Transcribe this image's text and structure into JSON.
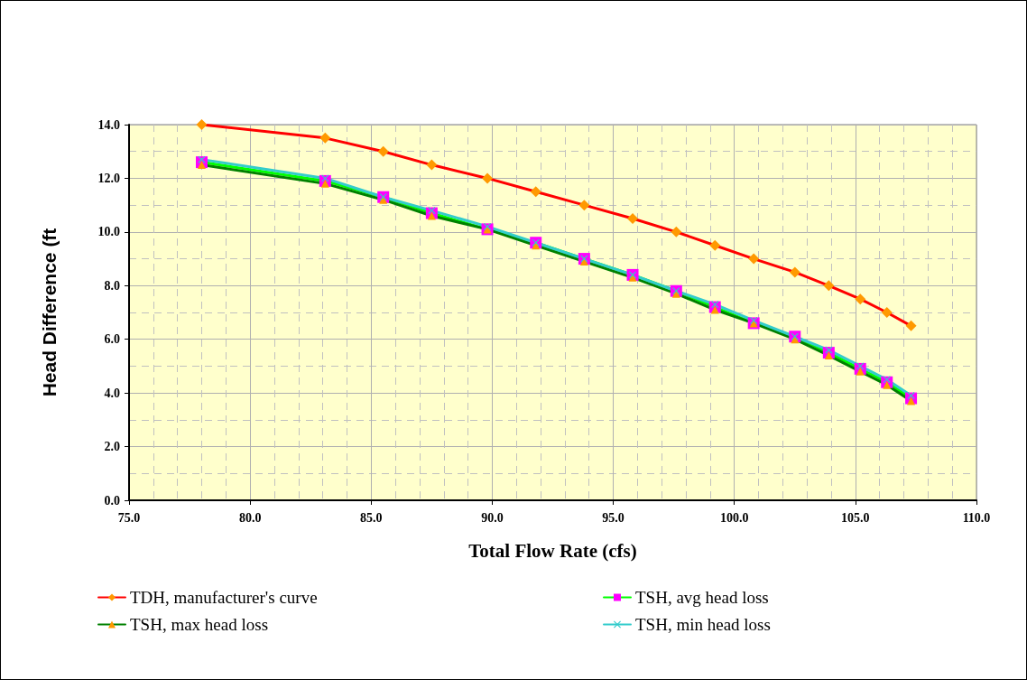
{
  "chart_data": {
    "type": "line",
    "xlabel": "Total Flow Rate (cfs)",
    "ylabel": "Head Difference (ft",
    "x": [
      78.0,
      83.1,
      85.5,
      87.5,
      89.8,
      91.8,
      93.8,
      95.8,
      97.6,
      99.2,
      100.8,
      102.5,
      103.9,
      105.2,
      106.3,
      107.3
    ],
    "xlim": [
      75,
      110
    ],
    "xticks": [
      {
        "value": 75,
        "label": "75.0"
      },
      {
        "value": 80,
        "label": "80.0"
      },
      {
        "value": 85,
        "label": "85.0"
      },
      {
        "value": 90,
        "label": "90.0"
      },
      {
        "value": 95,
        "label": "95.0"
      },
      {
        "value": 100,
        "label": "100.0"
      },
      {
        "value": 105,
        "label": "105.0"
      },
      {
        "value": 110,
        "label": "110.0"
      }
    ],
    "ylim": [
      0,
      14
    ],
    "yticks": [
      {
        "value": 0,
        "label": "0.0"
      },
      {
        "value": 2,
        "label": "2.0"
      },
      {
        "value": 4,
        "label": "4.0"
      },
      {
        "value": 6,
        "label": "6.0"
      },
      {
        "value": 8,
        "label": "8.0"
      },
      {
        "value": 10,
        "label": "10.0"
      },
      {
        "value": 12,
        "label": "12.0"
      },
      {
        "value": 14,
        "label": "14.0"
      }
    ],
    "grid": true,
    "legend": "bottom",
    "line_style": "solid",
    "series": [
      {
        "name": "TDH, manufacturer's curve",
        "color": "#ff0000",
        "marker": "diamond",
        "colors": [
          "#ff9900",
          "#ff9900",
          "#ff9900",
          "#ff9900",
          "#ff9900",
          "#ff9900",
          "#ff9900",
          "#ff9900",
          "#ff9900",
          "#ff9900",
          "#ff9900",
          "#ff9900",
          "#ff9900",
          "#ff9900",
          "#ff9900",
          "#ff9900"
        ],
        "values": [
          14.0,
          13.5,
          13.0,
          12.5,
          12.0,
          11.5,
          11.0,
          10.5,
          10.0,
          9.5,
          9.0,
          8.5,
          8.0,
          7.5,
          7.0,
          6.5
        ]
      },
      {
        "name": "TSH, avg head loss",
        "color": "#00ff00",
        "marker": "square",
        "colors": [
          "#ff00ff",
          "#ff00ff",
          "#ff00ff",
          "#ff00ff",
          "#ff00ff",
          "#ff00ff",
          "#ff00ff",
          "#ff00ff",
          "#ff00ff",
          "#ff00ff",
          "#ff00ff",
          "#ff00ff",
          "#ff00ff",
          "#ff00ff",
          "#ff00ff",
          "#ff00ff"
        ],
        "values": [
          12.6,
          11.9,
          11.3,
          10.7,
          10.1,
          9.6,
          9.0,
          8.4,
          7.8,
          7.2,
          6.6,
          6.1,
          5.5,
          4.9,
          4.4,
          3.8
        ]
      },
      {
        "name": "TSH, max head loss",
        "color": "#008000",
        "marker": "triangle",
        "colors": [
          "#ff9900",
          "#ff9900",
          "#ff9900",
          "#ff9900",
          "#ff9900",
          "#ff9900",
          "#ff9900",
          "#ff9900",
          "#ff9900",
          "#ff9900",
          "#ff9900",
          "#ff9900",
          "#ff9900",
          "#ff9900",
          "#ff9900",
          "#ff9900"
        ],
        "values": [
          12.5,
          11.8,
          11.2,
          10.6,
          10.1,
          9.5,
          8.9,
          8.3,
          7.7,
          7.1,
          6.6,
          6.0,
          5.4,
          4.8,
          4.3,
          3.7
        ]
      },
      {
        "name": "TSH, min head loss",
        "color": "#33cccc",
        "marker": "cross",
        "colors": [
          "#33cccc",
          "#33cccc",
          "#33cccc",
          "#33cccc",
          "#33cccc",
          "#33cccc",
          "#33cccc",
          "#33cccc",
          "#33cccc",
          "#33cccc",
          "#33cccc",
          "#33cccc",
          "#33cccc",
          "#33cccc",
          "#33cccc",
          "#33cccc"
        ],
        "values": [
          12.7,
          12.0,
          11.3,
          10.8,
          10.2,
          9.6,
          9.0,
          8.4,
          7.8,
          7.3,
          6.7,
          6.1,
          5.6,
          5.0,
          4.5,
          3.9
        ]
      }
    ]
  }
}
